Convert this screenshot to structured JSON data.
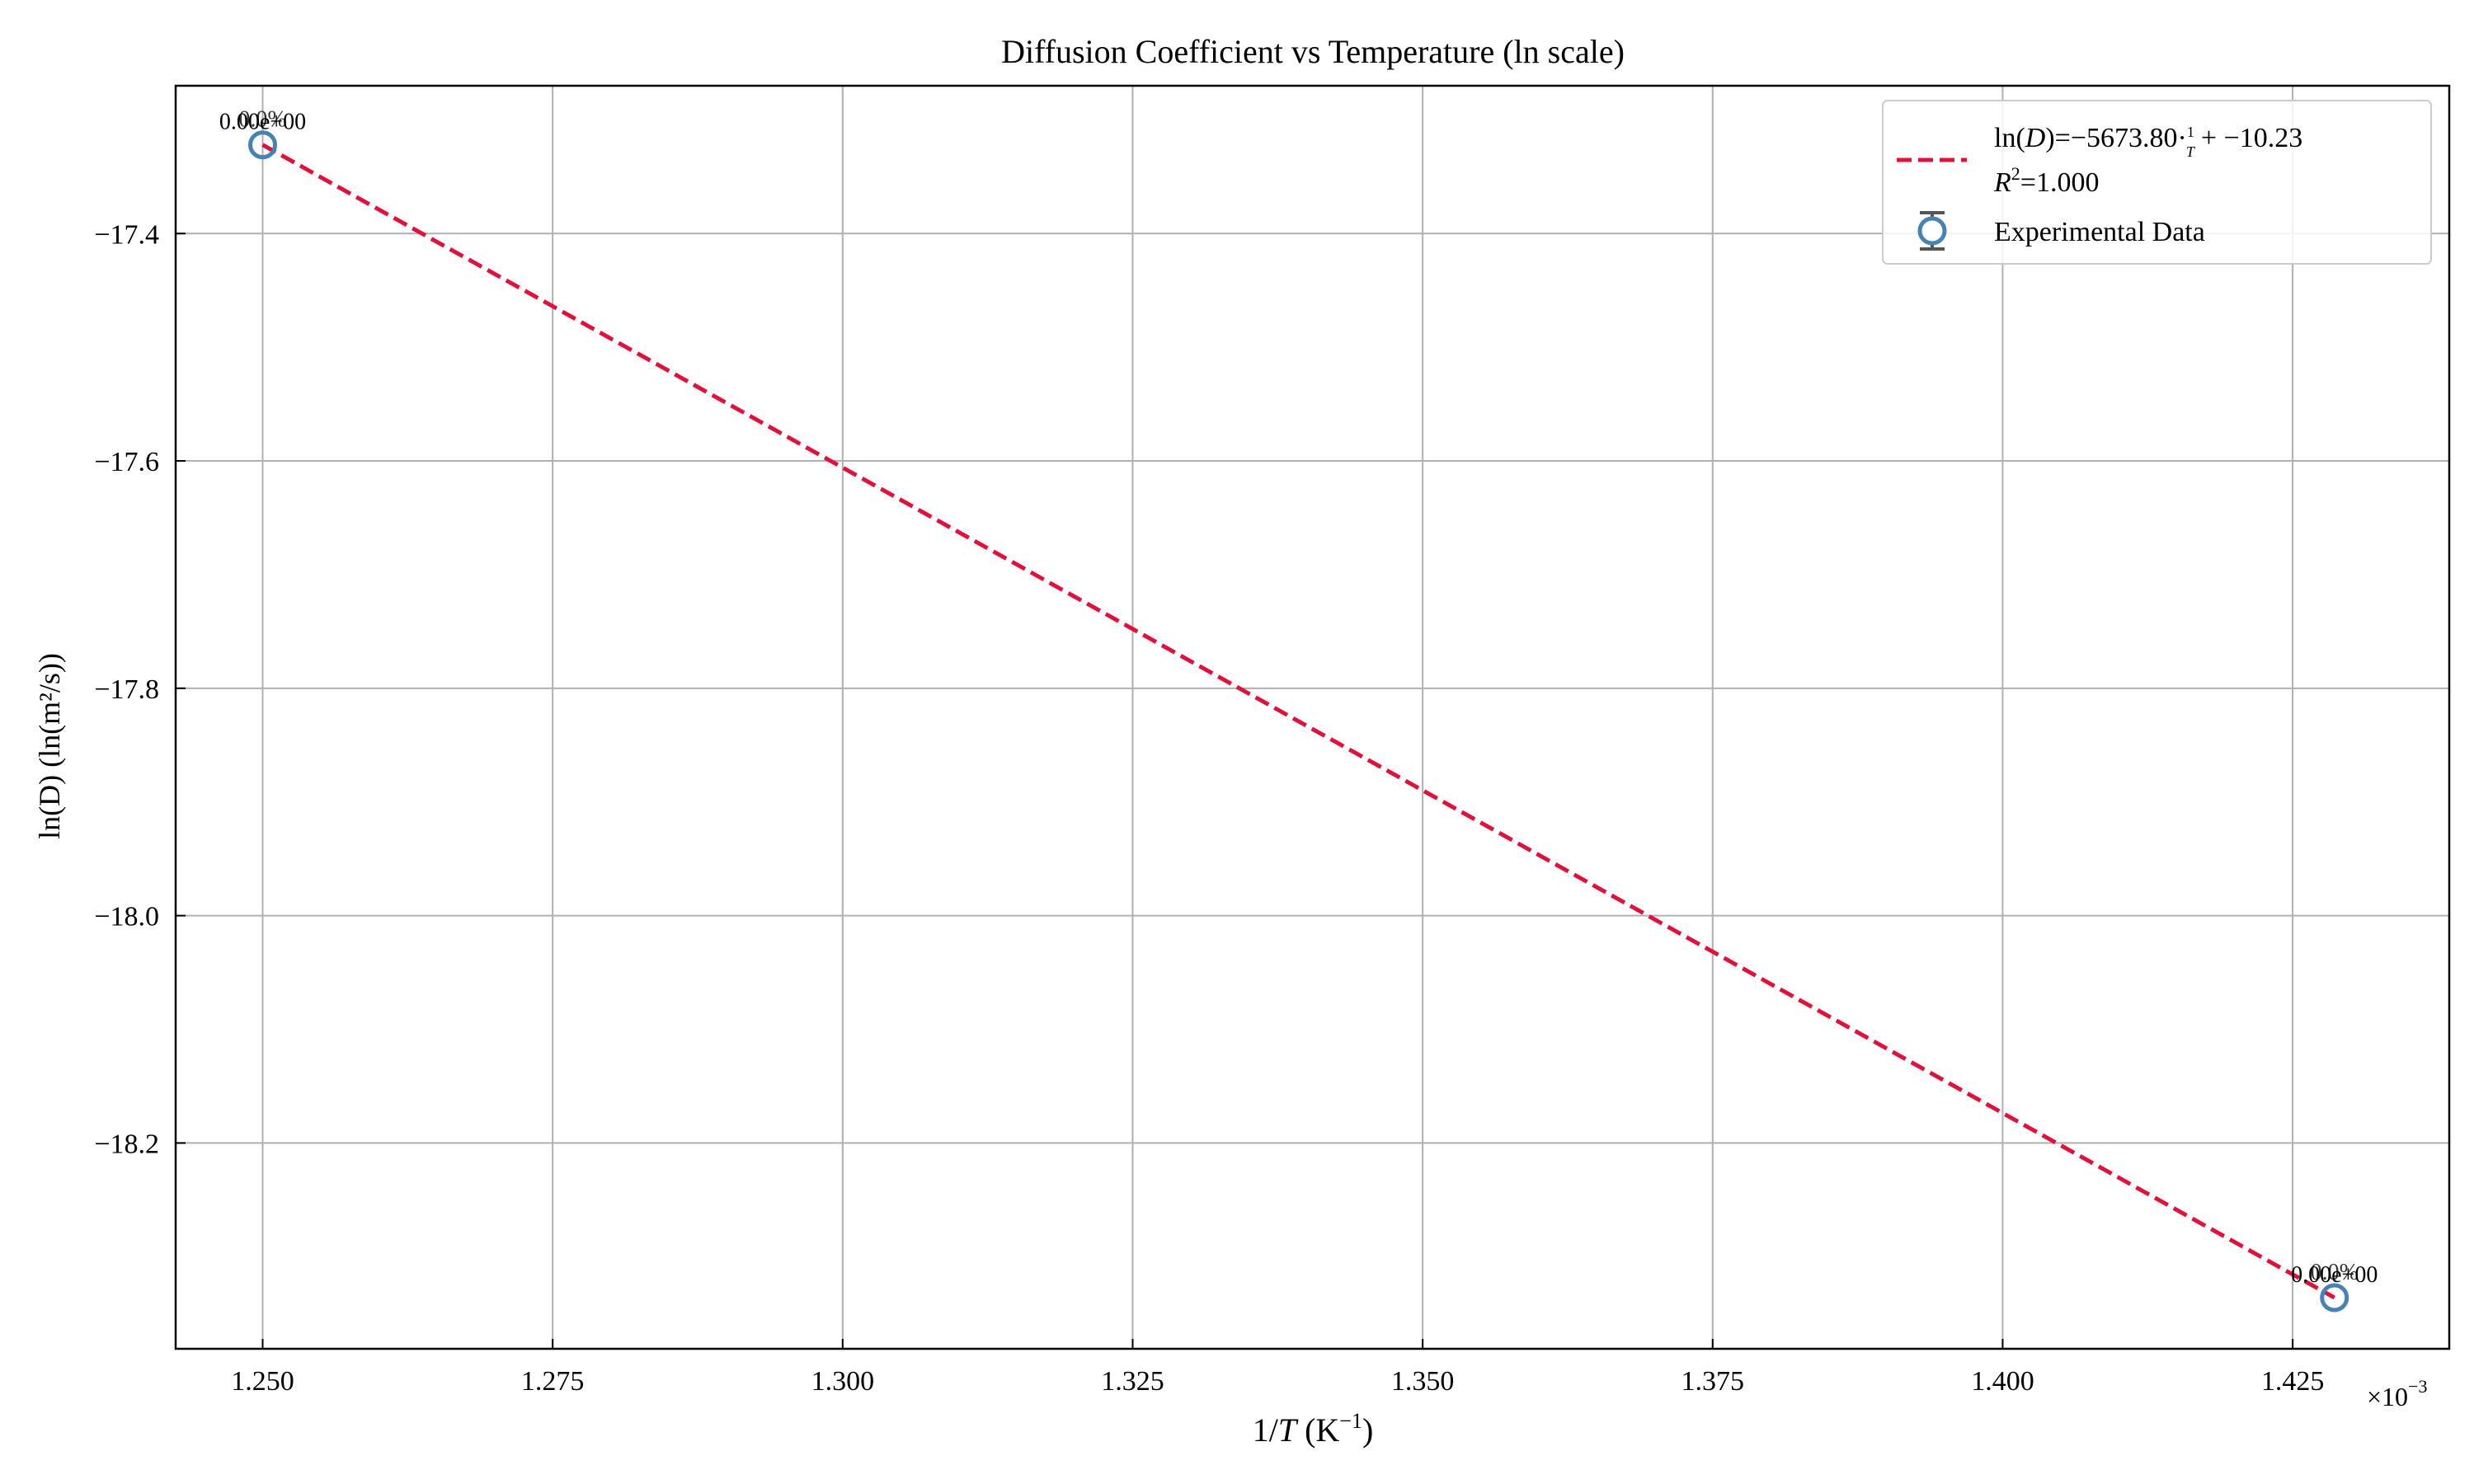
{
  "chart_data": {
    "type": "scatter",
    "title": "Diffusion Coefficient vs Temperature (ln scale)",
    "xlabel_prefix": "1/",
    "xlabel_var": "T",
    "xlabel_unit_open": " (K",
    "xlabel_unit_sup": "−1",
    "xlabel_unit_close": ")",
    "ylabel": "ln(D) (ln(m²/s))",
    "x_scale_prefix": "×10",
    "x_scale_exp": "−3",
    "xlim": [
      0.0012425,
      0.0014385
    ],
    "ylim": [
      -18.381,
      -17.27
    ],
    "x_ticks": [
      0.00125,
      0.001275,
      0.0013,
      0.001325,
      0.00135,
      0.001375,
      0.0014,
      0.001425
    ],
    "x_tick_labels": [
      "1.250",
      "1.275",
      "1.300",
      "1.325",
      "1.350",
      "1.375",
      "1.400",
      "1.425"
    ],
    "y_ticks": [
      -17.4,
      -17.6,
      -17.8,
      -18.0,
      -18.2
    ],
    "y_tick_labels": [
      "−17.4",
      "−17.6",
      "−17.8",
      "−18.0",
      "−18.2"
    ],
    "grid": true,
    "legend_position": "top-right",
    "series": [
      {
        "name": "Experimental Data",
        "kind": "scatter_errorbar",
        "color": "#4682b4",
        "x": [
          0.00125,
          0.0014286
        ],
        "y": [
          -17.322,
          -18.336
        ],
        "point_labels": [
          "0.00e+00",
          "0.00e+00"
        ],
        "overlay_labels": [
          "0.0%",
          "0.0%"
        ]
      },
      {
        "kind": "fit_line",
        "color": "#dc143c",
        "slope": -5673.8,
        "intercept": -10.23,
        "x": [
          0.00125,
          0.0014286
        ],
        "y": [
          -17.322,
          -18.336
        ],
        "legend_lines": [
          {
            "lhs": "ln(",
            "var": "D",
            "rhs": ")=−5673.80·",
            "frac_num": "1",
            "frac_den": "T",
            "tail": "+ −10.23"
          },
          {
            "r_var": "R",
            "r_sup": "2",
            "r_tail": "=1.000"
          }
        ]
      }
    ]
  }
}
